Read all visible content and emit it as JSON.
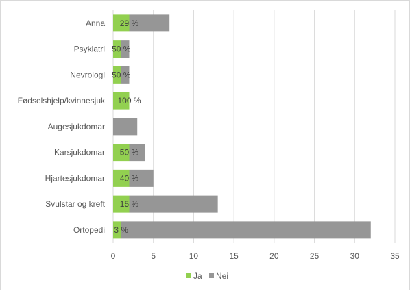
{
  "chart_data": {
    "type": "bar",
    "orientation": "horizontal",
    "stacked": true,
    "categories": [
      "Anna",
      "Psykiatri",
      "Nevrologi",
      "Fødselshjelp/kvinnesjuk",
      "Augesjukdomar",
      "Karsjukdomar",
      "Hjartesjukdomar",
      "Svulstar og kreft",
      "Ortopedi"
    ],
    "series": [
      {
        "name": "Ja",
        "color": "#92d050",
        "values": [
          2,
          1,
          1,
          2,
          0,
          2,
          2,
          2,
          1
        ]
      },
      {
        "name": "Nei",
        "color": "#969696",
        "values": [
          5,
          1,
          1,
          0,
          3,
          2,
          3,
          11,
          31
        ]
      }
    ],
    "data_labels": [
      "29 %",
      "50 %",
      "50 %",
      "100 %",
      "",
      "50 %",
      "40 %",
      "15 %",
      "3 %"
    ],
    "xlim": [
      0,
      35
    ],
    "xticks": [
      "0",
      "5",
      "10",
      "15",
      "20",
      "25",
      "30",
      "35"
    ],
    "grid": true,
    "legend": "bottom",
    "title": "",
    "xlabel": "",
    "ylabel": ""
  }
}
